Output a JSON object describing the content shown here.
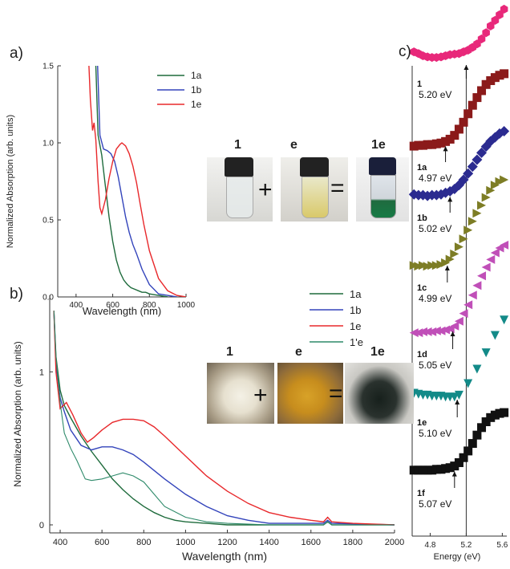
{
  "panel_labels": {
    "a": "a)",
    "b": "b)",
    "c": "c)"
  },
  "colors": {
    "1a": "#1e6b3c",
    "1b": "#3344bb",
    "1e": "#e8282b",
    "1prime_e": "#2e8a6a"
  },
  "chart_data": [
    {
      "type": "line",
      "panel": "a",
      "xlabel": "Wavelength (nm)",
      "ylabel": "Normalized Absorption (arb. units)",
      "xlim": [
        300,
        1000
      ],
      "ylim": [
        0,
        1.5
      ],
      "xticks": [
        400,
        600,
        800,
        1000
      ],
      "yticks": [
        "0.0",
        "0.5",
        "1.0",
        "1.5"
      ],
      "legend": [
        "1a",
        "1b",
        "1e"
      ],
      "series": [
        {
          "name": "1a",
          "x": [
            505,
            520,
            540,
            560,
            580,
            600,
            620,
            640,
            660,
            680,
            700,
            720,
            740,
            760,
            780,
            800,
            850,
            900
          ],
          "y": [
            1.6,
            1.05,
            0.92,
            0.72,
            0.52,
            0.36,
            0.24,
            0.16,
            0.11,
            0.08,
            0.06,
            0.05,
            0.04,
            0.03,
            0.03,
            0.02,
            0.01,
            0.0
          ]
        },
        {
          "name": "1b",
          "x": [
            515,
            530,
            550,
            570,
            590,
            610,
            630,
            650,
            670,
            690,
            710,
            730,
            760,
            800,
            850,
            900,
            950
          ],
          "y": [
            1.6,
            1.05,
            0.96,
            0.95,
            0.93,
            0.88,
            0.78,
            0.65,
            0.52,
            0.42,
            0.34,
            0.28,
            0.18,
            0.08,
            0.02,
            0.01,
            0.0
          ]
        },
        {
          "name": "1e",
          "x": [
            470,
            478,
            490,
            498,
            508,
            520,
            530,
            540,
            560,
            580,
            600,
            620,
            640,
            650,
            670,
            690,
            710,
            730,
            750,
            770,
            800,
            850,
            900,
            950,
            1000
          ],
          "y": [
            1.5,
            1.28,
            1.08,
            1.13,
            1.02,
            0.75,
            0.58,
            0.54,
            0.63,
            0.77,
            0.88,
            0.96,
            0.99,
            1.0,
            0.98,
            0.93,
            0.85,
            0.74,
            0.6,
            0.47,
            0.3,
            0.12,
            0.04,
            0.01,
            0.0
          ]
        }
      ]
    },
    {
      "type": "line",
      "panel": "b",
      "xlabel": "Wavelength (nm)",
      "ylabel": "Normalized Absorption (arb. units)",
      "xlim": [
        350,
        2000
      ],
      "ylim": [
        0,
        1.5
      ],
      "xticks": [
        400,
        600,
        800,
        1000,
        1200,
        1400,
        1600,
        1800,
        2000
      ],
      "yticks": [
        "0",
        "1"
      ],
      "legend": [
        "1a",
        "1b",
        "1e",
        "1'e"
      ],
      "series": [
        {
          "name": "1a",
          "x": [
            370,
            380,
            400,
            420,
            450,
            500,
            550,
            600,
            650,
            700,
            750,
            800,
            850,
            900,
            950,
            1000,
            1100,
            1200,
            1400,
            1660,
            1680,
            1700,
            2000
          ],
          "y": [
            1.4,
            1.1,
            0.88,
            0.78,
            0.7,
            0.58,
            0.48,
            0.39,
            0.3,
            0.23,
            0.17,
            0.12,
            0.08,
            0.05,
            0.03,
            0.02,
            0.01,
            0.0,
            0.0,
            0.0,
            0.02,
            0.0,
            0.0
          ]
        },
        {
          "name": "1b",
          "x": [
            370,
            380,
            400,
            420,
            450,
            500,
            550,
            600,
            650,
            700,
            750,
            800,
            900,
            1000,
            1100,
            1200,
            1300,
            1400,
            1660,
            1680,
            1700,
            2000
          ],
          "y": [
            1.4,
            1.05,
            0.83,
            0.74,
            0.62,
            0.52,
            0.49,
            0.51,
            0.51,
            0.49,
            0.46,
            0.41,
            0.3,
            0.2,
            0.12,
            0.06,
            0.03,
            0.01,
            0.01,
            0.03,
            0.01,
            0.0
          ]
        },
        {
          "name": "1e",
          "x": [
            370,
            380,
            400,
            430,
            460,
            500,
            530,
            560,
            600,
            650,
            700,
            750,
            800,
            850,
            900,
            1000,
            1100,
            1200,
            1300,
            1400,
            1500,
            1600,
            1660,
            1680,
            1700,
            1800,
            2000
          ],
          "y": [
            1.4,
            1.0,
            0.76,
            0.8,
            0.72,
            0.6,
            0.54,
            0.57,
            0.62,
            0.67,
            0.69,
            0.69,
            0.68,
            0.64,
            0.58,
            0.45,
            0.32,
            0.22,
            0.14,
            0.08,
            0.05,
            0.03,
            0.02,
            0.05,
            0.02,
            0.01,
            0.0
          ]
        },
        {
          "name": "1'e",
          "x": [
            370,
            380,
            400,
            420,
            450,
            480,
            500,
            520,
            550,
            600,
            650,
            700,
            750,
            800,
            850,
            900,
            1000,
            1100,
            1200,
            1400,
            1660,
            1680,
            1700,
            2000
          ],
          "y": [
            1.4,
            1.1,
            0.8,
            0.6,
            0.5,
            0.42,
            0.36,
            0.3,
            0.29,
            0.3,
            0.32,
            0.34,
            0.32,
            0.28,
            0.2,
            0.12,
            0.05,
            0.02,
            0.01,
            0.0,
            0.0,
            0.02,
            0.0,
            0.0
          ]
        }
      ]
    },
    {
      "type": "scatter",
      "panel": "c",
      "xlabel": "Energy (eV)",
      "xlim": [
        4.6,
        5.65
      ],
      "xticks": [
        "4.8",
        "5.2",
        "5.6"
      ],
      "reference_line_x": 5.2,
      "series": [
        {
          "name": "1",
          "label": "1",
          "value_label": "5.20 eV",
          "threshold": 5.2,
          "color": "#e8287a",
          "marker": "hexagon",
          "x": [
            4.62,
            4.67,
            4.72,
            4.77,
            4.82,
            4.87,
            4.92,
            4.97,
            5.02,
            5.07,
            5.12,
            5.17,
            5.22,
            5.27,
            5.32,
            5.37,
            5.42,
            5.47,
            5.52,
            5.57,
            5.62
          ],
          "y": [
            0.22,
            0.19,
            0.15,
            0.13,
            0.12,
            0.12,
            0.13,
            0.15,
            0.17,
            0.18,
            0.19,
            0.22,
            0.25,
            0.3,
            0.36,
            0.45,
            0.56,
            0.68,
            0.78,
            0.88,
            0.98
          ]
        },
        {
          "name": "1a",
          "label": "1a",
          "value_label": "4.97 eV",
          "threshold": 4.97,
          "color": "#8b1a1a",
          "marker": "square",
          "x": [
            4.62,
            4.67,
            4.72,
            4.77,
            4.82,
            4.87,
            4.92,
            4.97,
            5.02,
            5.07,
            5.12,
            5.17,
            5.22,
            5.27,
            5.32,
            5.37,
            5.42,
            5.47,
            5.52,
            5.57,
            5.62
          ],
          "y": [
            0.02,
            0.03,
            0.03,
            0.04,
            0.04,
            0.05,
            0.06,
            0.08,
            0.11,
            0.16,
            0.24,
            0.33,
            0.44,
            0.55,
            0.65,
            0.74,
            0.82,
            0.87,
            0.91,
            0.94,
            0.96
          ]
        },
        {
          "name": "1b",
          "label": "1b",
          "value_label": "5.02 eV",
          "threshold": 5.02,
          "color": "#2b2b90",
          "marker": "diamond",
          "x": [
            4.62,
            4.67,
            4.72,
            4.77,
            4.82,
            4.87,
            4.92,
            4.97,
            5.02,
            5.07,
            5.12,
            5.17,
            5.22,
            5.27,
            5.32,
            5.37,
            5.42,
            5.47,
            5.52,
            5.57,
            5.62
          ],
          "y": [
            0.05,
            0.04,
            0.04,
            0.03,
            0.04,
            0.04,
            0.05,
            0.07,
            0.09,
            0.12,
            0.17,
            0.24,
            0.32,
            0.41,
            0.5,
            0.59,
            0.67,
            0.74,
            0.79,
            0.84,
            0.87
          ]
        },
        {
          "name": "1c",
          "label": "1c",
          "value_label": "4.99 eV",
          "threshold": 4.99,
          "color": "#7d7d25",
          "marker": "triangle-right",
          "x": [
            4.62,
            4.67,
            4.72,
            4.77,
            4.82,
            4.87,
            4.92,
            4.97,
            5.02,
            5.07,
            5.12,
            5.17,
            5.22,
            5.27,
            5.32,
            5.37,
            5.42,
            5.47,
            5.52,
            5.57,
            5.62
          ],
          "y": [
            0.03,
            0.02,
            0.03,
            0.02,
            0.03,
            0.03,
            0.04,
            0.06,
            0.1,
            0.16,
            0.24,
            0.33,
            0.43,
            0.53,
            0.62,
            0.71,
            0.8,
            0.88,
            0.94,
            0.98,
            1.0
          ]
        },
        {
          "name": "1d",
          "label": "1d",
          "value_label": "5.05 eV",
          "threshold": 5.05,
          "color": "#c04fb8",
          "marker": "triangle-left",
          "x": [
            4.62,
            4.67,
            4.72,
            4.77,
            4.82,
            4.87,
            4.92,
            4.97,
            5.02,
            5.07,
            5.12,
            5.17,
            5.22,
            5.27,
            5.32,
            5.37,
            5.42,
            5.47,
            5.52,
            5.57,
            5.62
          ],
          "y": [
            0.02,
            0.02,
            0.03,
            0.03,
            0.03,
            0.04,
            0.04,
            0.05,
            0.06,
            0.09,
            0.14,
            0.22,
            0.31,
            0.41,
            0.51,
            0.61,
            0.7,
            0.78,
            0.85,
            0.9,
            0.93
          ]
        },
        {
          "name": "1e",
          "label": "1e",
          "value_label": "5.10 eV",
          "threshold": 5.1,
          "color": "#138a88",
          "marker": "triangle-down",
          "x": [
            4.62,
            4.67,
            4.72,
            4.77,
            4.82,
            4.87,
            4.92,
            4.97,
            5.02,
            5.07,
            5.12,
            5.22,
            5.32,
            5.42,
            5.52,
            5.62
          ],
          "y": [
            0.1,
            0.09,
            0.08,
            0.08,
            0.07,
            0.07,
            0.07,
            0.06,
            0.06,
            0.06,
            0.08,
            0.2,
            0.35,
            0.52,
            0.7,
            0.86
          ]
        },
        {
          "name": "1f",
          "label": "1f",
          "value_label": "5.07 eV",
          "threshold": 5.07,
          "color": "#111111",
          "marker": "square",
          "x": [
            4.62,
            4.67,
            4.72,
            4.77,
            4.82,
            4.87,
            4.92,
            4.97,
            5.02,
            5.07,
            5.12,
            5.17,
            5.22,
            5.27,
            5.32,
            5.37,
            5.42,
            5.47,
            5.52,
            5.57,
            5.62
          ],
          "y": [
            0.04,
            0.04,
            0.04,
            0.04,
            0.04,
            0.05,
            0.05,
            0.06,
            0.07,
            0.09,
            0.13,
            0.19,
            0.27,
            0.36,
            0.46,
            0.55,
            0.62,
            0.67,
            0.7,
            0.72,
            0.73
          ]
        }
      ]
    }
  ],
  "photos": {
    "top": {
      "labels": [
        "1",
        "e",
        "1e"
      ],
      "ops": [
        "+",
        "="
      ]
    },
    "bottom": {
      "labels": [
        "1",
        "e",
        "1e"
      ],
      "ops": [
        "+",
        "="
      ]
    }
  }
}
